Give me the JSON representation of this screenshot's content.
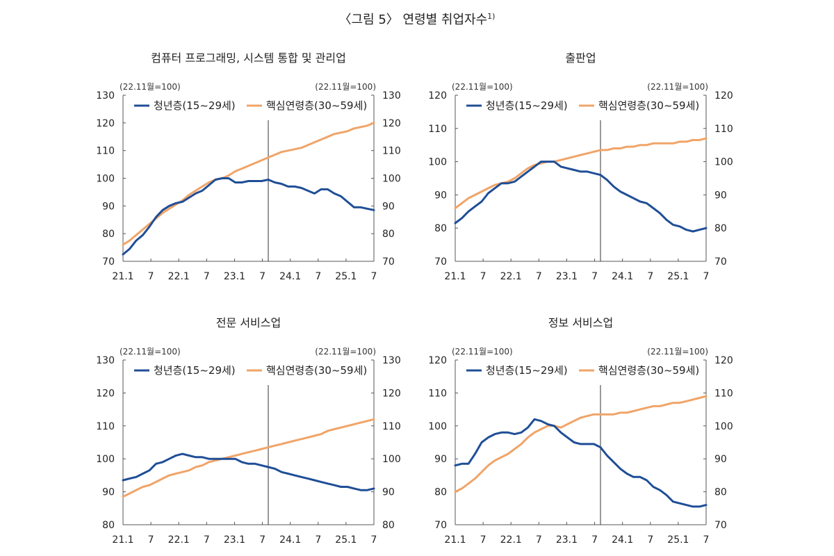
{
  "figure": {
    "title": "〈그림 5〉 연령별 취업자수",
    "title_footnote": "1)"
  },
  "colors": {
    "youth": "#1f4e96",
    "core": "#f0a468",
    "axis": "#555555",
    "vline": "#333333"
  },
  "chart_data": [
    {
      "type": "line",
      "title": "컴퓨터 프로그래밍, 시스템 통합 및 관리업",
      "base_left": "(22.11월=100)",
      "base_right": "(22.11월=100)",
      "ylim": [
        70,
        130
      ],
      "yticks": [
        70,
        80,
        90,
        100,
        110,
        120,
        130
      ],
      "xtick_labels": [
        "21.1",
        "7",
        "22.1",
        "7",
        "23.1",
        "7",
        "24.1",
        "7",
        "25.1",
        "7"
      ],
      "vline_x": 22,
      "series": [
        {
          "name": "청년층(15~29세)",
          "values": [
            72.5,
            74.5,
            77.5,
            79.5,
            82.5,
            86,
            88.5,
            90,
            91,
            91.5,
            93,
            94.5,
            95.5,
            97.5,
            99.5,
            100,
            100,
            98.5,
            98.5,
            99,
            99,
            99,
            99.5,
            98.5,
            98,
            97,
            97,
            96.5,
            95.5,
            94.5,
            96,
            96,
            94.5,
            93.5,
            91.5,
            89.5,
            89.5,
            89,
            88.5
          ]
        },
        {
          "name": "핵심연령층(30~59세)",
          "values": [
            76,
            77.5,
            79.5,
            81.5,
            83.5,
            85.5,
            87.5,
            89,
            90.5,
            92,
            94,
            95.5,
            97,
            98.5,
            99.5,
            100,
            101,
            102.5,
            103.5,
            104.5,
            105.5,
            106.5,
            107.5,
            108.5,
            109.5,
            110,
            110.5,
            111,
            112,
            113,
            114,
            115,
            116,
            116.5,
            117,
            118,
            118.5,
            119,
            120
          ]
        }
      ]
    },
    {
      "type": "line",
      "title": "출판업",
      "base_left": "(22.11월=100)",
      "base_right": "(22.11월=100)",
      "ylim": [
        70,
        120
      ],
      "yticks": [
        70,
        80,
        90,
        100,
        110,
        120
      ],
      "xtick_labels": [
        "21.1",
        "7",
        "22.1",
        "7",
        "23.1",
        "7",
        "24.1",
        "7",
        "25.1",
        "7"
      ],
      "vline_x": 22,
      "series": [
        {
          "name": "청년층(15~29세)",
          "values": [
            81.5,
            83,
            85,
            86.5,
            88,
            90.5,
            92,
            93.5,
            93.5,
            94,
            95.5,
            97,
            98.5,
            100,
            100,
            100,
            98.5,
            98,
            97.5,
            97,
            97,
            96.5,
            96,
            94.5,
            92.5,
            91,
            90,
            89,
            88,
            87.5,
            86,
            84.5,
            82.5,
            81,
            80.5,
            79.5,
            79,
            79.5,
            80
          ]
        },
        {
          "name": "핵심연령층(30~59세)",
          "values": [
            86,
            87.5,
            89,
            90,
            91,
            92,
            93,
            93.5,
            94,
            95,
            96.5,
            98,
            99,
            99.5,
            100,
            100,
            100.5,
            101,
            101.5,
            102,
            102.5,
            103,
            103.5,
            103.5,
            104,
            104,
            104.5,
            104.5,
            105,
            105,
            105.5,
            105.5,
            105.5,
            105.5,
            106,
            106,
            106.5,
            106.5,
            107
          ]
        }
      ]
    },
    {
      "type": "line",
      "title": "전문 서비스업",
      "base_left": "(22.11월=100)",
      "base_right": "(22.11월=100)",
      "ylim": [
        80,
        130
      ],
      "yticks": [
        80,
        90,
        100,
        110,
        120,
        130
      ],
      "xtick_labels": [
        "21.1",
        "7",
        "22.1",
        "7",
        "23.1",
        "7",
        "24.1",
        "7",
        "25.1",
        "7"
      ],
      "vline_x": 22,
      "series": [
        {
          "name": "청년층(15~29세)",
          "values": [
            93.5,
            94,
            94.5,
            95.5,
            96.5,
            98.5,
            99,
            100,
            101,
            101.5,
            101,
            100.5,
            100.5,
            100,
            100,
            100,
            100,
            100,
            99,
            98.5,
            98.5,
            98,
            97.5,
            97,
            96,
            95.5,
            95,
            94.5,
            94,
            93.5,
            93,
            92.5,
            92,
            91.5,
            91.5,
            91,
            90.5,
            90.5,
            91
          ]
        },
        {
          "name": "핵심연령층(30~59세)",
          "values": [
            88.5,
            89.5,
            90.5,
            91.5,
            92,
            93,
            94,
            95,
            95.5,
            96,
            96.5,
            97.5,
            98,
            99,
            99.5,
            100,
            100.5,
            101,
            101.5,
            102,
            102.5,
            103,
            103.5,
            104,
            104.5,
            105,
            105.5,
            106,
            106.5,
            107,
            107.5,
            108.5,
            109,
            109.5,
            110,
            110.5,
            111,
            111.5,
            112
          ]
        }
      ]
    },
    {
      "type": "line",
      "title": "정보 서비스업",
      "base_left": "(22.11월=100)",
      "base_right": "(22.11월=100)",
      "ylim": [
        70,
        120
      ],
      "yticks": [
        70,
        80,
        90,
        100,
        110,
        120
      ],
      "xtick_labels": [
        "21.1",
        "7",
        "22.1",
        "7",
        "23.1",
        "7",
        "24.1",
        "7",
        "25.1",
        "7"
      ],
      "vline_x": 22,
      "series": [
        {
          "name": "청년층(15~29세)",
          "values": [
            88,
            88.5,
            88.5,
            91.5,
            95,
            96.5,
            97.5,
            98,
            98,
            97.5,
            98,
            99.5,
            102,
            101.5,
            100.5,
            100,
            98,
            96.5,
            95,
            94.5,
            94.5,
            94.5,
            93.5,
            91,
            89,
            87,
            85.5,
            84.5,
            84.5,
            83.5,
            81.5,
            80.5,
            79,
            77,
            76.5,
            76,
            75.5,
            75.5,
            76
          ]
        },
        {
          "name": "핵심연령층(30~59세)",
          "values": [
            80,
            81,
            82.5,
            84,
            86,
            88,
            89.5,
            90.5,
            91.5,
            93,
            94.5,
            96.5,
            98,
            99,
            100,
            100,
            99.5,
            100.5,
            101.5,
            102.5,
            103,
            103.5,
            103.5,
            103.5,
            103.5,
            104,
            104,
            104.5,
            105,
            105.5,
            106,
            106,
            106.5,
            107,
            107,
            107.5,
            108,
            108.5,
            109
          ]
        }
      ]
    }
  ]
}
